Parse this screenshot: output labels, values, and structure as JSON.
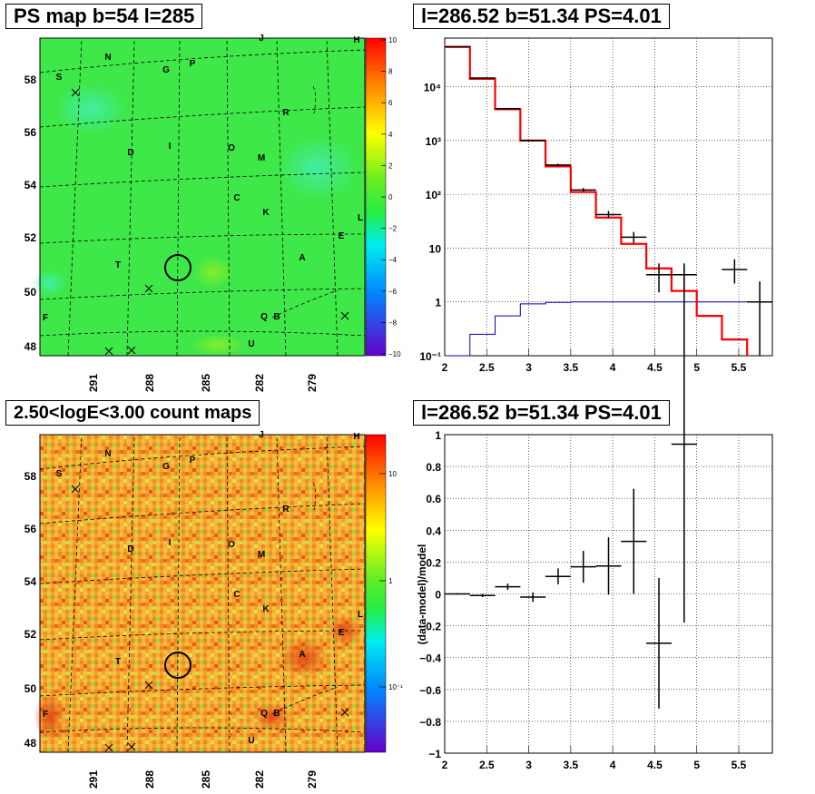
{
  "titles": {
    "map_top": "PS map b=54 l=285",
    "spec_top": "l=286.52 b=51.34 PS=4.01",
    "map_bottom": "2.50<logE<3.00 count maps",
    "spec_bottom": "l=286.52 b=51.34 PS=4.01"
  },
  "colors": {
    "data": "#000000",
    "model": "#ff0000",
    "ps_model": "#0000aa",
    "map_bg_top": "#3ee848",
    "map_bg_bottom": "#f0a030"
  },
  "chart_data": [
    {
      "type": "heatmap",
      "panel": "ps-map",
      "title": "PS map b=54 l=285",
      "ylabels": [
        "58",
        "56",
        "54",
        "52",
        "50",
        "48"
      ],
      "xlabels": [
        "291",
        "288",
        "285",
        "282",
        "279"
      ],
      "colorbar": {
        "min": -10,
        "max": 10,
        "ticks": [
          "10",
          "8",
          "6",
          "4",
          "2",
          "0",
          "−2",
          "−4",
          "−6",
          "−8",
          "−10"
        ]
      },
      "sources": [
        "H",
        "J",
        "N",
        "S",
        "G",
        "P",
        "R",
        "D",
        "I",
        "O",
        "M",
        "C",
        "K",
        "L",
        "E",
        "T",
        "A",
        "F",
        "Q",
        "B",
        "U"
      ],
      "marker": {
        "l": 286.52,
        "b": 51.34
      }
    },
    {
      "type": "line",
      "panel": "spectrum",
      "title": "l=286.52 b=51.34 PS=4.01",
      "xlim": [
        2,
        5.9
      ],
      "ylim": [
        0.1,
        80000
      ],
      "log_y": true,
      "grid": true,
      "xticks": [
        "2",
        "2.5",
        "3",
        "3.5",
        "4",
        "4.5",
        "5",
        "5.5"
      ],
      "yticks": [
        "10⁻¹",
        "1",
        "10",
        "10²",
        "10³",
        "10⁴"
      ],
      "bin_edges": [
        2,
        2.3,
        2.6,
        2.9,
        3.2,
        3.5,
        3.8,
        4.1,
        4.4,
        4.7,
        5.0,
        5.3,
        5.6
      ],
      "series": [
        {
          "values": [
            55000,
            14000,
            3800,
            1000,
            330,
            110,
            37,
            12,
            4.2,
            1.6,
            0.55,
            0.2
          ]
        },
        {
          "values": [
            0.05,
            0.25,
            0.55,
            0.92,
            0.98,
            1.0,
            1.0,
            1.0,
            1.0,
            1.0,
            1.0,
            1.0,
            1.0
          ]
        }
      ],
      "points": [
        {
          "x": 2.15,
          "y": 55000,
          "ylo": 54500,
          "yhi": 55500
        },
        {
          "x": 2.45,
          "y": 14500,
          "ylo": 14200,
          "yhi": 14800
        },
        {
          "x": 2.75,
          "y": 3900,
          "ylo": 3800,
          "yhi": 4000
        },
        {
          "x": 3.05,
          "y": 1000,
          "ylo": 970,
          "yhi": 1030
        },
        {
          "x": 3.35,
          "y": 350,
          "ylo": 330,
          "yhi": 370
        },
        {
          "x": 3.65,
          "y": 120,
          "ylo": 110,
          "yhi": 131
        },
        {
          "x": 3.95,
          "y": 42,
          "ylo": 36,
          "yhi": 49
        },
        {
          "x": 4.25,
          "y": 16,
          "ylo": 12.5,
          "yhi": 20
        },
        {
          "x": 4.55,
          "y": 3.2,
          "ylo": 1.5,
          "yhi": 5.2
        },
        {
          "x": 4.85,
          "y": 3.2,
          "ylo": 1.5,
          "yhi": 5.2
        },
        {
          "x": 5.45,
          "y": 4.0,
          "ylo": 2.2,
          "yhi": 6.2
        },
        {
          "x": 5.75,
          "y": 1.0,
          "ylo": 0.1,
          "yhi": 2.4
        }
      ]
    },
    {
      "type": "heatmap",
      "panel": "count-map",
      "title": "2.50<logE<3.00 count maps",
      "ylabels": [
        "58",
        "56",
        "54",
        "52",
        "50",
        "48"
      ],
      "xlabels": [
        "291",
        "288",
        "285",
        "282",
        "279"
      ],
      "colorbar": {
        "log": true,
        "ticks": [
          "10",
          "1",
          "10⁻¹"
        ]
      },
      "sources": [
        "H",
        "J",
        "N",
        "S",
        "G",
        "P",
        "R",
        "D",
        "I",
        "O",
        "M",
        "C",
        "K",
        "L",
        "E",
        "T",
        "A",
        "F",
        "Q",
        "B",
        "U"
      ]
    },
    {
      "type": "scatter",
      "panel": "residuals",
      "title": "l=286.52 b=51.34 PS=4.01",
      "ylabel": "(data-model)/model",
      "xlim": [
        2,
        5.9
      ],
      "ylim": [
        -1,
        1
      ],
      "grid": true,
      "xticks": [
        "2",
        "2.5",
        "3",
        "3.5",
        "4",
        "4.5",
        "5",
        "5.5"
      ],
      "yticks": [
        "1",
        "0.8",
        "0.6",
        "0.4",
        "0.2",
        "0",
        "−0.2",
        "−0.4",
        "−0.6",
        "−0.8",
        "−1"
      ],
      "points": [
        {
          "x": 2.15,
          "y": 0.0,
          "err": 0.005
        },
        {
          "x": 2.45,
          "y": -0.01,
          "err": 0.01
        },
        {
          "x": 2.75,
          "y": 0.045,
          "err": 0.02
        },
        {
          "x": 3.05,
          "y": -0.02,
          "err": 0.03
        },
        {
          "x": 3.35,
          "y": 0.11,
          "err": 0.05
        },
        {
          "x": 3.65,
          "y": 0.17,
          "err": 0.1
        },
        {
          "x": 3.95,
          "y": 0.175,
          "err": 0.18
        },
        {
          "x": 4.25,
          "y": 0.33,
          "err": 0.33
        },
        {
          "x": 4.55,
          "y": -0.31,
          "err": 0.41
        },
        {
          "x": 4.85,
          "y": 0.94,
          "err": 1.12
        }
      ]
    }
  ]
}
